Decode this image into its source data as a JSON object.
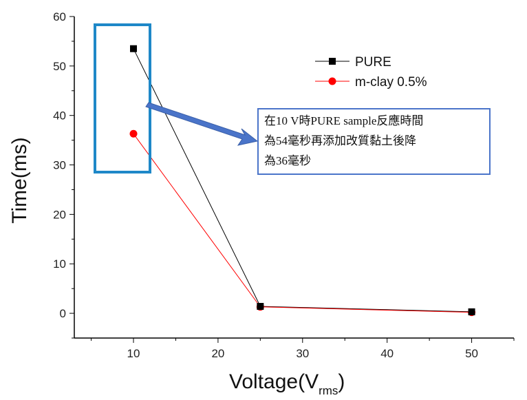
{
  "chart_data": {
    "type": "line",
    "xlabel": "Voltage(V",
    "xlabel_sub": "rms",
    "xlabel_close": ")",
    "ylabel": "Time(ms)",
    "xlim": [
      3,
      55
    ],
    "ylim": [
      -5,
      60
    ],
    "xticks": [
      10,
      20,
      30,
      40,
      50
    ],
    "yticks": [
      0,
      10,
      20,
      30,
      40,
      50,
      60
    ],
    "series": [
      {
        "name": "PURE",
        "x": [
          10,
          25,
          50
        ],
        "y": [
          53.5,
          1.4,
          0.3
        ],
        "color": "#000000",
        "marker": "square"
      },
      {
        "name": "m-clay 0.5%",
        "x": [
          10,
          25,
          50
        ],
        "y": [
          36.3,
          1.3,
          0.2
        ],
        "color": "#ff0000",
        "marker": "circle"
      }
    ],
    "legend_position": "top-right",
    "annotation": {
      "lines": [
        "在10 V時PURE sample反應時間",
        "為54毫秒再添加改質黏土後降",
        "為36毫秒"
      ],
      "highlight_color": "#1e88c8",
      "arrow_color": "#4a74c9"
    }
  }
}
